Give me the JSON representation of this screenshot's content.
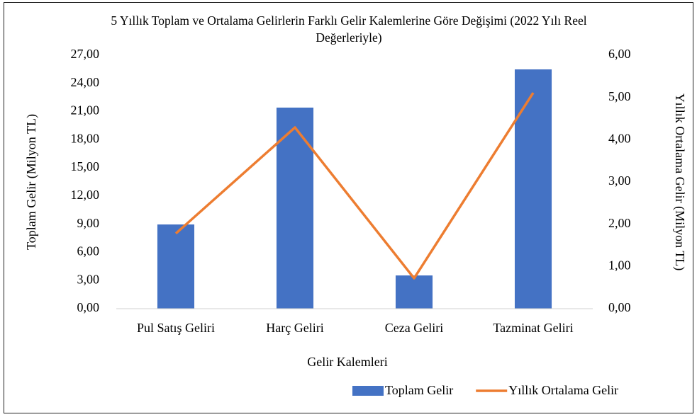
{
  "chart_data": {
    "type": "bar_line",
    "title": "5 Yıllık Toplam ve Ortalama Gelirlerin Farklı Gelir Kalemlerine Göre Değişimi (2022 Yılı Reel Değerleriyle)",
    "x_label": "Gelir Kalemleri",
    "y_label": "Toplam Gelir (Milyon TL)",
    "y2_label": "Yıllık Ortalama Gelir (Milyon TL)",
    "categories": [
      "Pul Satış Geliri",
      "Harç Geliri",
      "Ceza Geliri",
      "Tazminat Geliri"
    ],
    "series": [
      {
        "name": "Toplam Gelir",
        "type": "bar",
        "color": "#4472c4",
        "values": [
          8.97,
          21.42,
          3.54,
          25.49
        ]
      },
      {
        "name": "Yıllık Ortalama Gelir",
        "type": "line",
        "axis": "y2",
        "color": "#ed7d31",
        "values": [
          1.78,
          4.29,
          0.72,
          5.11
        ]
      }
    ],
    "ylim": [
      0,
      27
    ],
    "yticks": [
      {
        "value": 0,
        "label": "0,00"
      },
      {
        "value": 3,
        "label": "3,00"
      },
      {
        "value": 6,
        "label": "6,00"
      },
      {
        "value": 9,
        "label": "9,00"
      },
      {
        "value": 12,
        "label": "12,00"
      },
      {
        "value": 15,
        "label": "15,00"
      },
      {
        "value": 18,
        "label": "18,00"
      },
      {
        "value": 21,
        "label": "21,00"
      },
      {
        "value": 24,
        "label": "24,00"
      },
      {
        "value": 27,
        "label": "27,00"
      }
    ],
    "y2lim": [
      0,
      6
    ],
    "y2ticks": [
      {
        "value": 0,
        "label": "0,00"
      },
      {
        "value": 1,
        "label": "1,00"
      },
      {
        "value": 2,
        "label": "2,00"
      },
      {
        "value": 3,
        "label": "3,00"
      },
      {
        "value": 4,
        "label": "4,00"
      },
      {
        "value": 5,
        "label": "5,00"
      },
      {
        "value": 6,
        "label": "6,00"
      }
    ],
    "grid": false,
    "legend": "bottom-right"
  }
}
